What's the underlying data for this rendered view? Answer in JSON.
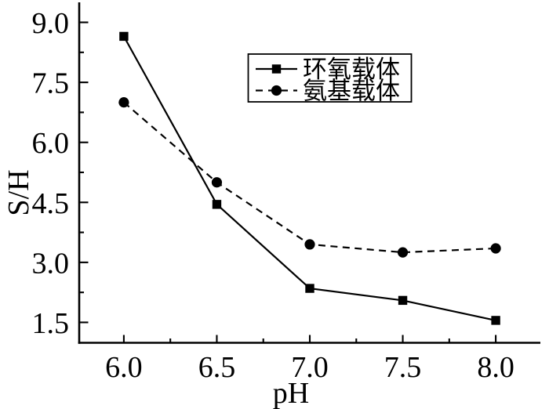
{
  "figure": {
    "background_color": "#ffffff",
    "ink_color": "#000000"
  },
  "chart_data": {
    "type": "line",
    "title": "",
    "xlabel": "pH",
    "ylabel": "S/H",
    "x": [
      6.0,
      6.5,
      7.0,
      7.5,
      8.0
    ],
    "series": [
      {
        "name": "环氧载体",
        "marker": "square",
        "line_style": "solid",
        "color": "#000000",
        "values": [
          8.65,
          4.45,
          2.35,
          2.05,
          1.55
        ]
      },
      {
        "name": "氨基载体",
        "marker": "circle",
        "line_style": "dashed",
        "color": "#000000",
        "values": [
          7.0,
          5.0,
          3.45,
          3.25,
          3.35
        ]
      }
    ],
    "x_major_ticks": [
      6.0,
      6.5,
      7.0,
      7.5,
      8.0
    ],
    "x_tick_labels": [
      "6.0",
      "6.5",
      "7.0",
      "7.5",
      "8.0"
    ],
    "x_minor_ticks": [
      6.25,
      6.75,
      7.25,
      7.75
    ],
    "y_major_ticks": [
      1.5,
      3.0,
      4.5,
      6.0,
      7.5,
      9.0
    ],
    "y_tick_labels": [
      "1.5",
      "3.0",
      "4.5",
      "6.0",
      "7.5",
      "9.0"
    ],
    "y_minor_ticks": [
      2.25,
      3.75,
      5.25,
      6.75,
      8.25
    ],
    "xlim": [
      5.76,
      8.24
    ],
    "ylim": [
      0.99,
      9.5
    ],
    "grid": false,
    "tick_direction": "in",
    "legend": {
      "position": "inside-upper-right",
      "border": true
    }
  }
}
